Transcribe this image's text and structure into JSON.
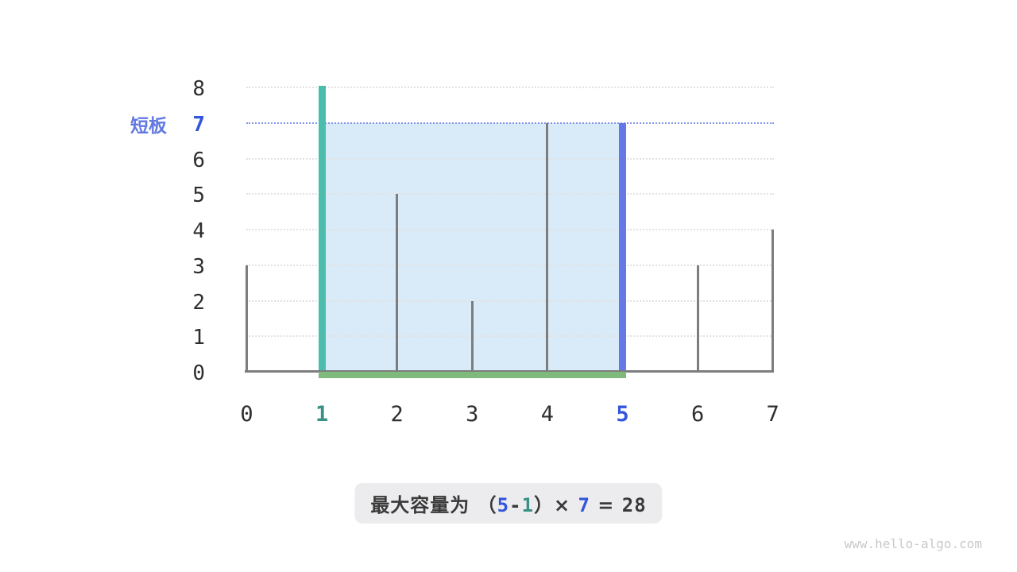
{
  "chart_data": {
    "type": "bar",
    "title": "",
    "xlabel": "",
    "ylabel": "",
    "categories": [
      0,
      1,
      2,
      3,
      4,
      5,
      6,
      7
    ],
    "values": [
      3,
      8,
      5,
      2,
      7,
      7,
      3,
      4
    ],
    "x_ticks": [
      0,
      1,
      2,
      3,
      4,
      5,
      6,
      7
    ],
    "y_ticks": [
      0,
      1,
      2,
      3,
      4,
      5,
      6,
      7,
      8
    ],
    "ylim": [
      0,
      8
    ],
    "grid": "dotted-horizontal",
    "left_pointer": {
      "index": 1,
      "height": 8
    },
    "right_pointer": {
      "index": 5,
      "height": 7
    },
    "short_board_height": 7,
    "water_region": {
      "x_from": 1,
      "x_to": 5,
      "y_from": 0,
      "y_to": 7
    },
    "max_capacity": 28,
    "colors": {
      "left_bar": "#4bbcae",
      "right_bar": "#6478e8",
      "bar_gray": "#7d7d7d",
      "axis_gray": "#7d7d7d",
      "water_fill": "#d9eaf8",
      "bottom_line": "#7fba7d",
      "short_board_line": "#8595e8",
      "grid": "#e2e2e2",
      "teal_text": "#399186",
      "blue_text": "#3356dc",
      "label_blue": "#6379e2",
      "dark_text": "#3a3a3a"
    }
  },
  "labels": {
    "short_board": "短板"
  },
  "caption": {
    "parts": [
      {
        "text": "最大容量为 （",
        "color": "dark",
        "mono": false
      },
      {
        "text": "5",
        "color": "blue",
        "mono": true
      },
      {
        "text": "-",
        "color": "dark",
        "mono": true
      },
      {
        "text": "1",
        "color": "teal",
        "mono": true
      },
      {
        "text": "）× ",
        "color": "dark",
        "mono": false
      },
      {
        "text": "7",
        "color": "blue",
        "mono": true
      },
      {
        "text": " = ",
        "color": "dark",
        "mono": false
      },
      {
        "text": "28",
        "color": "dark",
        "mono": true
      }
    ]
  },
  "watermark": "www.hello-algo.com"
}
